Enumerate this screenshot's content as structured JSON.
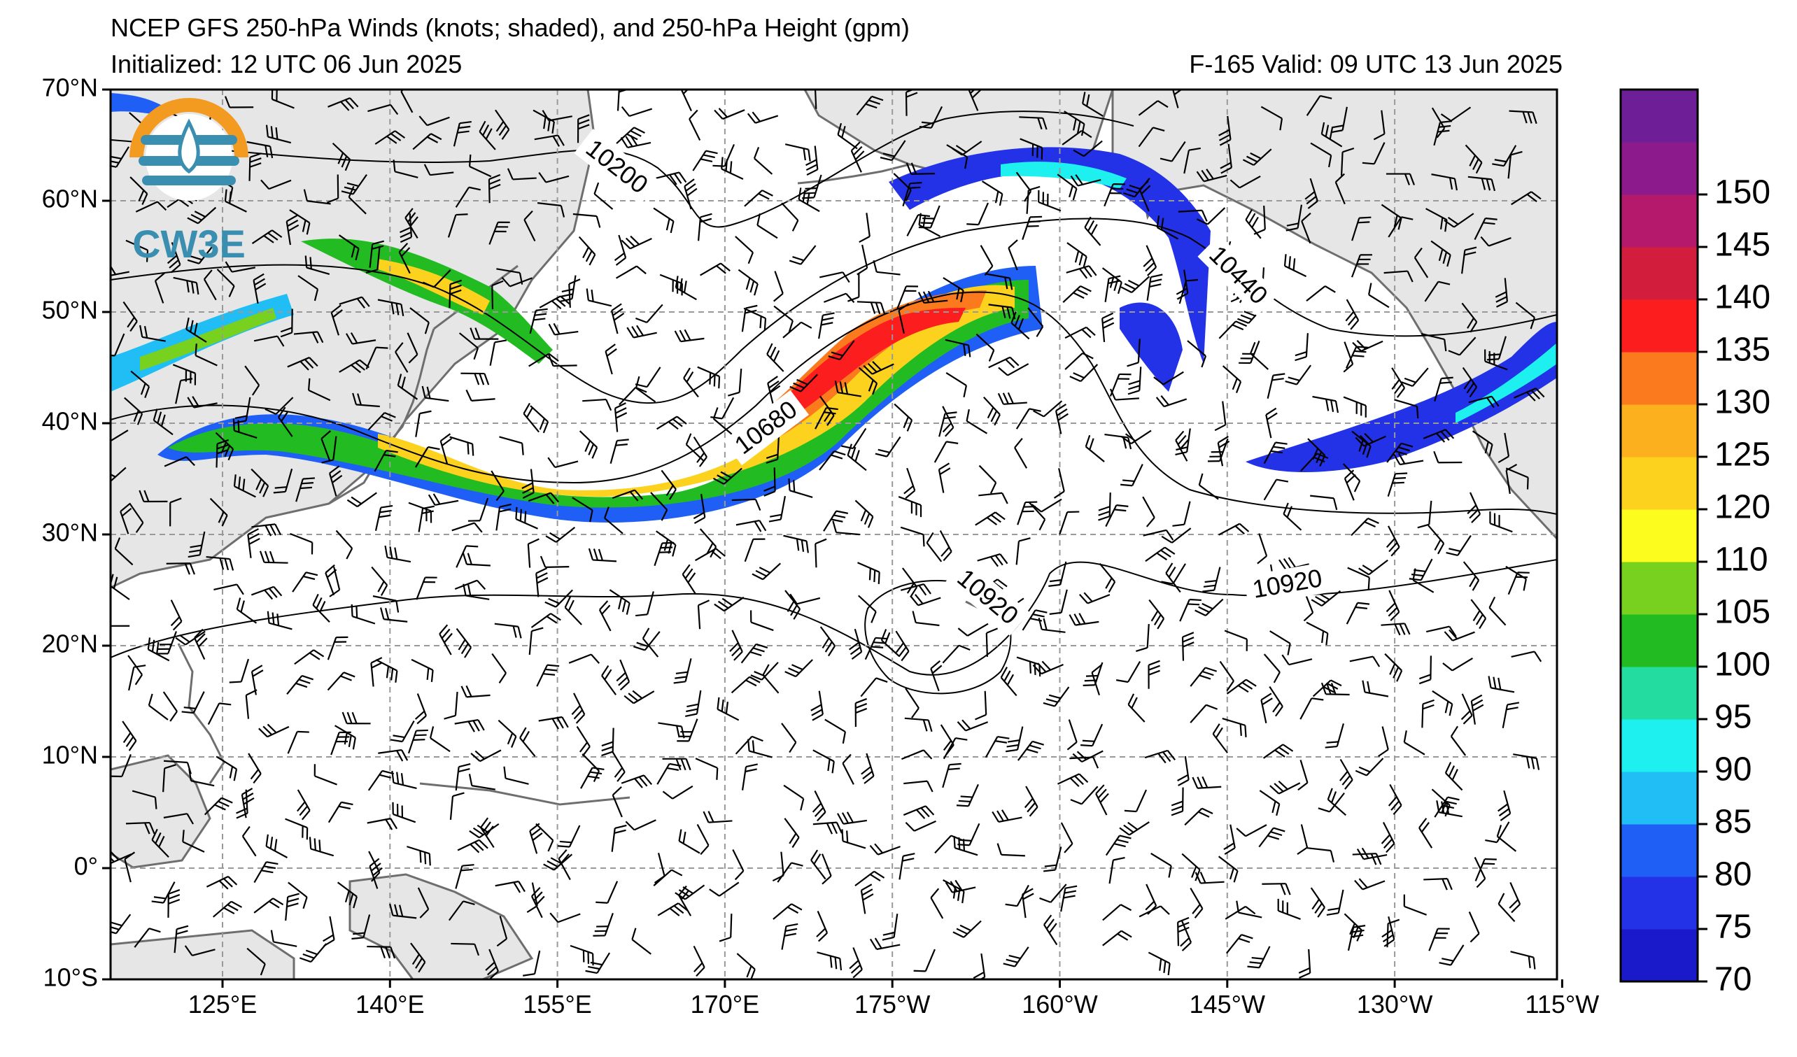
{
  "title": "NCEP GFS 250-hPa Winds (knots; shaded), and 250-hPa Height (gpm)",
  "initialized": "Initialized: 12 UTC 06 Jun 2025",
  "valid": "F-165  Valid: 09 UTC 13 Jun 2025",
  "logo_text": "CW3E",
  "lat_labels": [
    "70°N",
    "60°N",
    "50°N",
    "40°N",
    "30°N",
    "20°N",
    "10°N",
    "0°",
    "10°S"
  ],
  "lon_labels": [
    "125°E",
    "140°E",
    "155°E",
    "170°E",
    "175°W",
    "160°W",
    "145°W",
    "130°W",
    "115°W"
  ],
  "contour_labels": [
    "10200",
    "10440",
    "10680",
    "10920",
    "10920"
  ],
  "colorbar": {
    "ticks": [
      "70",
      "75",
      "80",
      "85",
      "90",
      "95",
      "100",
      "105",
      "110",
      "120",
      "125",
      "130",
      "135",
      "140",
      "145",
      "150"
    ],
    "colors": [
      "#1a1acb",
      "#2332e6",
      "#1f5ff5",
      "#21bdf5",
      "#1ef0f0",
      "#22dca0",
      "#22bb22",
      "#77d11e",
      "#fcfc1e",
      "#fcd21e",
      "#fcb01e",
      "#fc7a1e",
      "#fc1e1e",
      "#d21e3c",
      "#b4196b",
      "#8c1a8c",
      "#6e1e96"
    ]
  },
  "map_colors": {
    "land": "#e6e6e6",
    "coast": "#6e6e6e",
    "grid": "#999999"
  }
}
